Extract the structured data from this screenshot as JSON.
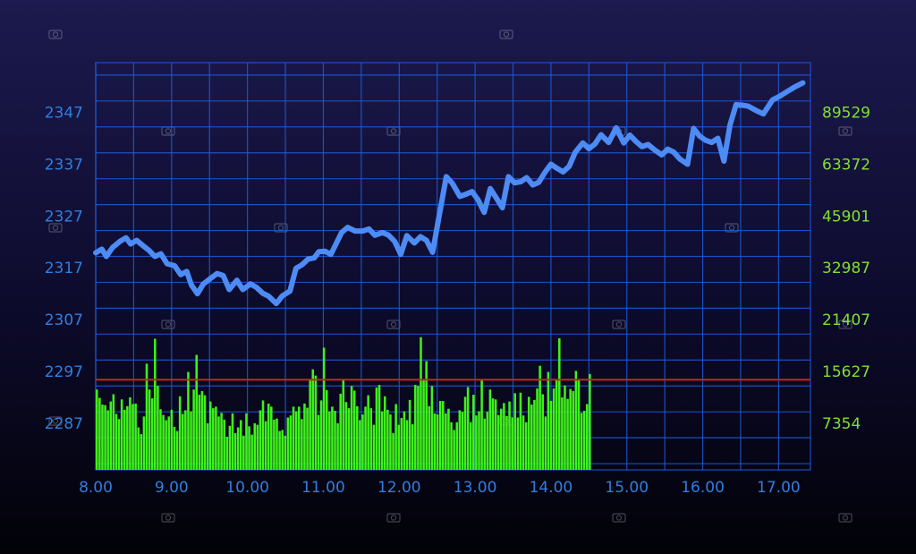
{
  "chart_data": {
    "type": "line+bar",
    "left_axis": {
      "ticks": [
        2287,
        2297,
        2307,
        2317,
        2327,
        2337,
        2347
      ],
      "range": [
        2278,
        2356.6
      ]
    },
    "right_axis": {
      "ticks": [
        "7354",
        "15627",
        "21407",
        "32987",
        "45901",
        "63372",
        "89529"
      ]
    },
    "x_axis": {
      "ticks": [
        "8.00",
        "9.00",
        "10.00",
        "11.00",
        "12.00",
        "13.00",
        "14.00",
        "15.00",
        "16.00",
        "17.00"
      ],
      "range": [
        8.0,
        17.42
      ]
    },
    "grid": true,
    "reference_line": {
      "left_value": 2295.4,
      "color": "#d02020"
    },
    "colors": {
      "line": "#4d8bf5",
      "bars": "#3ef21a",
      "grid": "#1f5ad8",
      "left_labels": "#2f7fe0",
      "right_labels": "#7fe030"
    },
    "series": [
      {
        "kind": "line",
        "axis": "left",
        "points": [
          [
            8.0,
            2319.9
          ],
          [
            8.08,
            2320.6
          ],
          [
            8.14,
            2319.2
          ],
          [
            8.22,
            2320.9
          ],
          [
            8.32,
            2322.1
          ],
          [
            8.4,
            2322.8
          ],
          [
            8.46,
            2321.6
          ],
          [
            8.54,
            2322.3
          ],
          [
            8.62,
            2321.3
          ],
          [
            8.7,
            2320.4
          ],
          [
            8.78,
            2319.2
          ],
          [
            8.86,
            2319.7
          ],
          [
            8.94,
            2317.8
          ],
          [
            9.04,
            2317.4
          ],
          [
            9.12,
            2315.7
          ],
          [
            9.2,
            2316.3
          ],
          [
            9.26,
            2313.7
          ],
          [
            9.34,
            2312.0
          ],
          [
            9.42,
            2313.9
          ],
          [
            9.5,
            2314.8
          ],
          [
            9.6,
            2315.9
          ],
          [
            9.68,
            2315.5
          ],
          [
            9.76,
            2312.8
          ],
          [
            9.86,
            2314.6
          ],
          [
            9.94,
            2312.8
          ],
          [
            10.04,
            2313.9
          ],
          [
            10.12,
            2313.2
          ],
          [
            10.2,
            2312.1
          ],
          [
            10.28,
            2311.5
          ],
          [
            10.38,
            2310.1
          ],
          [
            10.46,
            2311.6
          ],
          [
            10.56,
            2312.5
          ],
          [
            10.64,
            2316.9
          ],
          [
            10.72,
            2317.6
          ],
          [
            10.8,
            2318.7
          ],
          [
            10.88,
            2318.9
          ],
          [
            10.94,
            2320.1
          ],
          [
            11.02,
            2320.2
          ],
          [
            11.1,
            2319.6
          ],
          [
            11.16,
            2321.4
          ],
          [
            11.24,
            2323.8
          ],
          [
            11.32,
            2324.8
          ],
          [
            11.42,
            2324.1
          ],
          [
            11.52,
            2324.1
          ],
          [
            11.6,
            2324.5
          ],
          [
            11.68,
            2323.3
          ],
          [
            11.78,
            2323.8
          ],
          [
            11.86,
            2323.3
          ],
          [
            11.94,
            2322.1
          ],
          [
            12.02,
            2319.6
          ],
          [
            12.1,
            2323.2
          ],
          [
            12.2,
            2321.8
          ],
          [
            12.28,
            2323.0
          ],
          [
            12.36,
            2322.3
          ],
          [
            12.44,
            2320.0
          ],
          [
            12.52,
            2326.5
          ],
          [
            12.62,
            2334.6
          ],
          [
            12.7,
            2333.3
          ],
          [
            12.8,
            2330.8
          ],
          [
            12.88,
            2331.2
          ],
          [
            12.96,
            2331.7
          ],
          [
            13.04,
            2330.1
          ],
          [
            13.12,
            2327.7
          ],
          [
            13.2,
            2332.3
          ],
          [
            13.28,
            2330.5
          ],
          [
            13.36,
            2328.6
          ],
          [
            13.44,
            2334.6
          ],
          [
            13.52,
            2333.4
          ],
          [
            13.6,
            2333.6
          ],
          [
            13.68,
            2334.4
          ],
          [
            13.76,
            2333.0
          ],
          [
            13.84,
            2333.5
          ],
          [
            13.92,
            2335.4
          ],
          [
            14.0,
            2337.0
          ],
          [
            14.08,
            2336.2
          ],
          [
            14.16,
            2335.5
          ],
          [
            14.24,
            2336.6
          ],
          [
            14.32,
            2339.3
          ],
          [
            14.42,
            2341.1
          ],
          [
            14.5,
            2340.0
          ],
          [
            14.58,
            2340.9
          ],
          [
            14.66,
            2342.7
          ],
          [
            14.76,
            2341.2
          ],
          [
            14.86,
            2344.0
          ],
          [
            14.96,
            2341.1
          ],
          [
            15.04,
            2342.6
          ],
          [
            15.12,
            2341.4
          ],
          [
            15.2,
            2340.4
          ],
          [
            15.28,
            2340.8
          ],
          [
            15.38,
            2339.6
          ],
          [
            15.46,
            2338.8
          ],
          [
            15.54,
            2339.9
          ],
          [
            15.62,
            2339.3
          ],
          [
            15.7,
            2338.0
          ],
          [
            15.8,
            2337.0
          ],
          [
            15.88,
            2343.9
          ],
          [
            15.96,
            2342.4
          ],
          [
            16.04,
            2341.6
          ],
          [
            16.12,
            2341.2
          ],
          [
            16.2,
            2342.0
          ],
          [
            16.28,
            2337.6
          ],
          [
            16.36,
            2344.6
          ],
          [
            16.44,
            2348.5
          ],
          [
            16.52,
            2348.4
          ],
          [
            16.6,
            2348.2
          ],
          [
            16.7,
            2347.4
          ],
          [
            16.8,
            2346.7
          ],
          [
            16.92,
            2349.4
          ],
          [
            17.0,
            2350.0
          ],
          [
            17.1,
            2350.9
          ],
          [
            17.2,
            2351.8
          ],
          [
            17.32,
            2352.7
          ]
        ]
      },
      {
        "kind": "bar",
        "axis": "left",
        "x_start": 8.0,
        "x_step": 0.0365,
        "values": [
          2293.5,
          2291.9,
          2290.6,
          2290.5,
          2289.5,
          2291.2,
          2292.6,
          2288.8,
          2287.8,
          2291.6,
          2289.6,
          2290.3,
          2292.0,
          2290.7,
          2290.8,
          2286.2,
          2284.9,
          2288.3,
          2298.5,
          2293.5,
          2291.8,
          2303.3,
          2294.2,
          2289.7,
          2288.6,
          2287.6,
          2288.3,
          2289.6,
          2286.3,
          2285.5,
          2292.2,
          2288.8,
          2289.5,
          2296.9,
          2289.3,
          2293.5,
          2300.2,
          2292.5,
          2293.2,
          2292.4,
          2287.0,
          2291.2,
          2289.9,
          2290.2,
          2288.3,
          2289.0,
          2287.7,
          2284.4,
          2286.5,
          2288.9,
          2285.1,
          2286.2,
          2287.6,
          2284.6,
          2288.9,
          2286.4,
          2284.8,
          2287.0,
          2286.7,
          2289.5,
          2291.4,
          2287.4,
          2290.8,
          2290.2,
          2287.7,
          2287.9,
          2285.5,
          2285.7,
          2284.6,
          2288.1,
          2288.5,
          2290.2,
          2289.3,
          2290.2,
          2287.8,
          2290.8,
          2290.0,
          2295.4,
          2297.4,
          2296.2,
          2288.6,
          2291.4,
          2301.6,
          2293.4,
          2289.3,
          2290.2,
          2289.4,
          2287.0,
          2292.7,
          2295.3,
          2291.1,
          2289.9,
          2294.2,
          2293.3,
          2290.3,
          2287.6,
          2288.7,
          2290.2,
          2292.4,
          2289.9,
          2286.7,
          2293.9,
          2294.4,
          2289.3,
          2292.2,
          2289.6,
          2288.7,
          2285.1,
          2290.7,
          2286.7,
          2288.0,
          2289.3,
          2287.6,
          2291.5,
          2286.8,
          2294.4,
          2294.2,
          2303.6,
          2295.3,
          2299.0,
          2290.3,
          2294.2,
          2288.9,
          2288.7,
          2291.3,
          2291.3,
          2288.9,
          2289.8,
          2287.2,
          2285.7,
          2287.2,
          2289.5,
          2289.2,
          2292.1,
          2294.0,
          2287.2,
          2292.5,
          2288.5,
          2289.3,
          2295.3,
          2287.9,
          2289.2,
          2293.5,
          2291.8,
          2291.6,
          2288.6,
          2289.8,
          2290.9,
          2288.4,
          2291.2,
          2288.1,
          2292.8,
          2288.1,
          2292.9,
          2288.5,
          2287.2,
          2292.1,
          2290.6,
          2291.5,
          2293.7,
          2298.1,
          2292.6,
          2288.3,
          2296.9,
          2291.3,
          2293.7,
          2295.4,
          2303.4,
          2292.0,
          2294.3,
          2291.7,
          2293.6,
          2293.2,
          2297.1,
          2295.3,
          2289.0,
          2289.4,
          2290.7,
          2296.5
        ]
      }
    ]
  }
}
